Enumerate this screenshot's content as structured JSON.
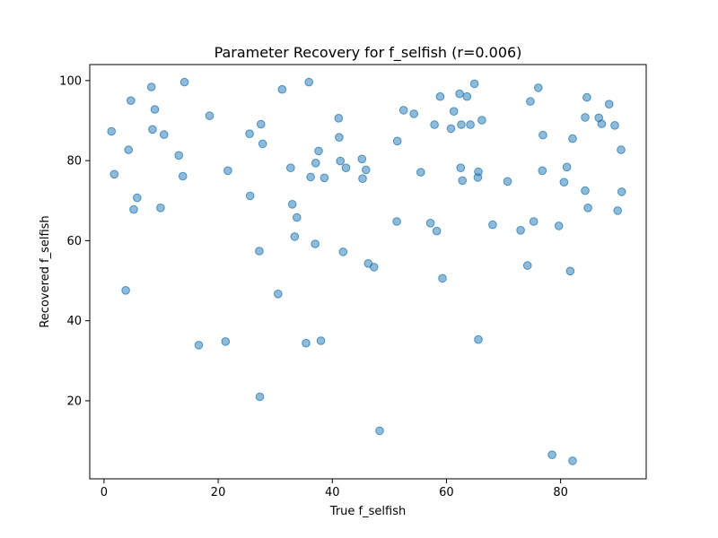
{
  "chart_data": {
    "type": "scatter",
    "title": "Parameter Recovery for f_selfish (r=0.006)",
    "xlabel": "True f_selfish",
    "ylabel": "Recovered f_selfish",
    "xlim": [
      -2.5,
      95
    ],
    "ylim": [
      0.5,
      104
    ],
    "xticks": [
      0,
      20,
      40,
      60,
      80
    ],
    "yticks": [
      20,
      40,
      60,
      80,
      100
    ],
    "grid": false,
    "point_color": "#1f77b4",
    "point_opacity": 0.5,
    "points": [
      [
        1.3,
        87.3
      ],
      [
        1.8,
        76.6
      ],
      [
        3.8,
        47.6
      ],
      [
        4.3,
        82.7
      ],
      [
        4.7,
        95.0
      ],
      [
        5.2,
        67.8
      ],
      [
        5.8,
        70.7
      ],
      [
        8.3,
        98.4
      ],
      [
        8.5,
        87.8
      ],
      [
        8.9,
        92.8
      ],
      [
        9.9,
        68.2
      ],
      [
        10.5,
        86.5
      ],
      [
        13.1,
        81.3
      ],
      [
        13.8,
        76.1
      ],
      [
        14.1,
        99.6
      ],
      [
        16.6,
        33.9
      ],
      [
        18.5,
        91.2
      ],
      [
        21.3,
        34.8
      ],
      [
        21.7,
        77.5
      ],
      [
        25.5,
        86.7
      ],
      [
        25.6,
        71.2
      ],
      [
        27.2,
        57.4
      ],
      [
        27.3,
        21.0
      ],
      [
        27.5,
        89.1
      ],
      [
        27.8,
        84.2
      ],
      [
        30.5,
        46.7
      ],
      [
        31.2,
        97.8
      ],
      [
        32.7,
        78.2
      ],
      [
        33.0,
        69.1
      ],
      [
        33.4,
        61.0
      ],
      [
        33.8,
        65.8
      ],
      [
        35.4,
        34.4
      ],
      [
        35.9,
        99.6
      ],
      [
        36.2,
        75.9
      ],
      [
        37.0,
        59.2
      ],
      [
        37.1,
        79.4
      ],
      [
        37.6,
        82.4
      ],
      [
        38.0,
        35.0
      ],
      [
        38.6,
        75.7
      ],
      [
        41.1,
        90.6
      ],
      [
        41.2,
        85.8
      ],
      [
        41.4,
        79.9
      ],
      [
        41.9,
        57.2
      ],
      [
        42.4,
        78.2
      ],
      [
        45.2,
        80.4
      ],
      [
        45.3,
        75.5
      ],
      [
        45.9,
        77.7
      ],
      [
        46.3,
        54.3
      ],
      [
        47.3,
        53.4
      ],
      [
        48.3,
        12.5
      ],
      [
        51.3,
        64.8
      ],
      [
        51.4,
        84.9
      ],
      [
        52.5,
        92.6
      ],
      [
        54.3,
        91.7
      ],
      [
        55.5,
        77.1
      ],
      [
        57.2,
        64.4
      ],
      [
        57.9,
        89.0
      ],
      [
        58.3,
        62.4
      ],
      [
        58.9,
        96.0
      ],
      [
        59.3,
        50.6
      ],
      [
        60.8,
        88.0
      ],
      [
        61.3,
        92.3
      ],
      [
        62.3,
        96.7
      ],
      [
        62.5,
        78.2
      ],
      [
        62.6,
        89.0
      ],
      [
        62.8,
        75.0
      ],
      [
        63.6,
        96.0
      ],
      [
        64.2,
        89.0
      ],
      [
        64.9,
        99.2
      ],
      [
        65.5,
        75.8
      ],
      [
        65.6,
        77.2
      ],
      [
        65.6,
        35.3
      ],
      [
        66.2,
        90.1
      ],
      [
        68.1,
        64.0
      ],
      [
        70.7,
        74.8
      ],
      [
        73.0,
        62.6
      ],
      [
        74.2,
        53.8
      ],
      [
        74.7,
        94.8
      ],
      [
        75.3,
        64.8
      ],
      [
        76.1,
        98.2
      ],
      [
        76.8,
        77.5
      ],
      [
        76.9,
        86.4
      ],
      [
        78.5,
        6.5
      ],
      [
        79.7,
        63.7
      ],
      [
        80.6,
        74.6
      ],
      [
        81.1,
        78.4
      ],
      [
        81.7,
        52.4
      ],
      [
        82.1,
        85.5
      ],
      [
        82.1,
        5.0
      ],
      [
        84.3,
        90.8
      ],
      [
        84.3,
        72.5
      ],
      [
        84.6,
        95.8
      ],
      [
        84.8,
        68.2
      ],
      [
        86.7,
        90.7
      ],
      [
        87.2,
        89.2
      ],
      [
        88.5,
        94.1
      ],
      [
        89.5,
        88.8
      ],
      [
        90.0,
        67.5
      ],
      [
        90.6,
        82.7
      ],
      [
        90.7,
        72.2
      ]
    ]
  }
}
